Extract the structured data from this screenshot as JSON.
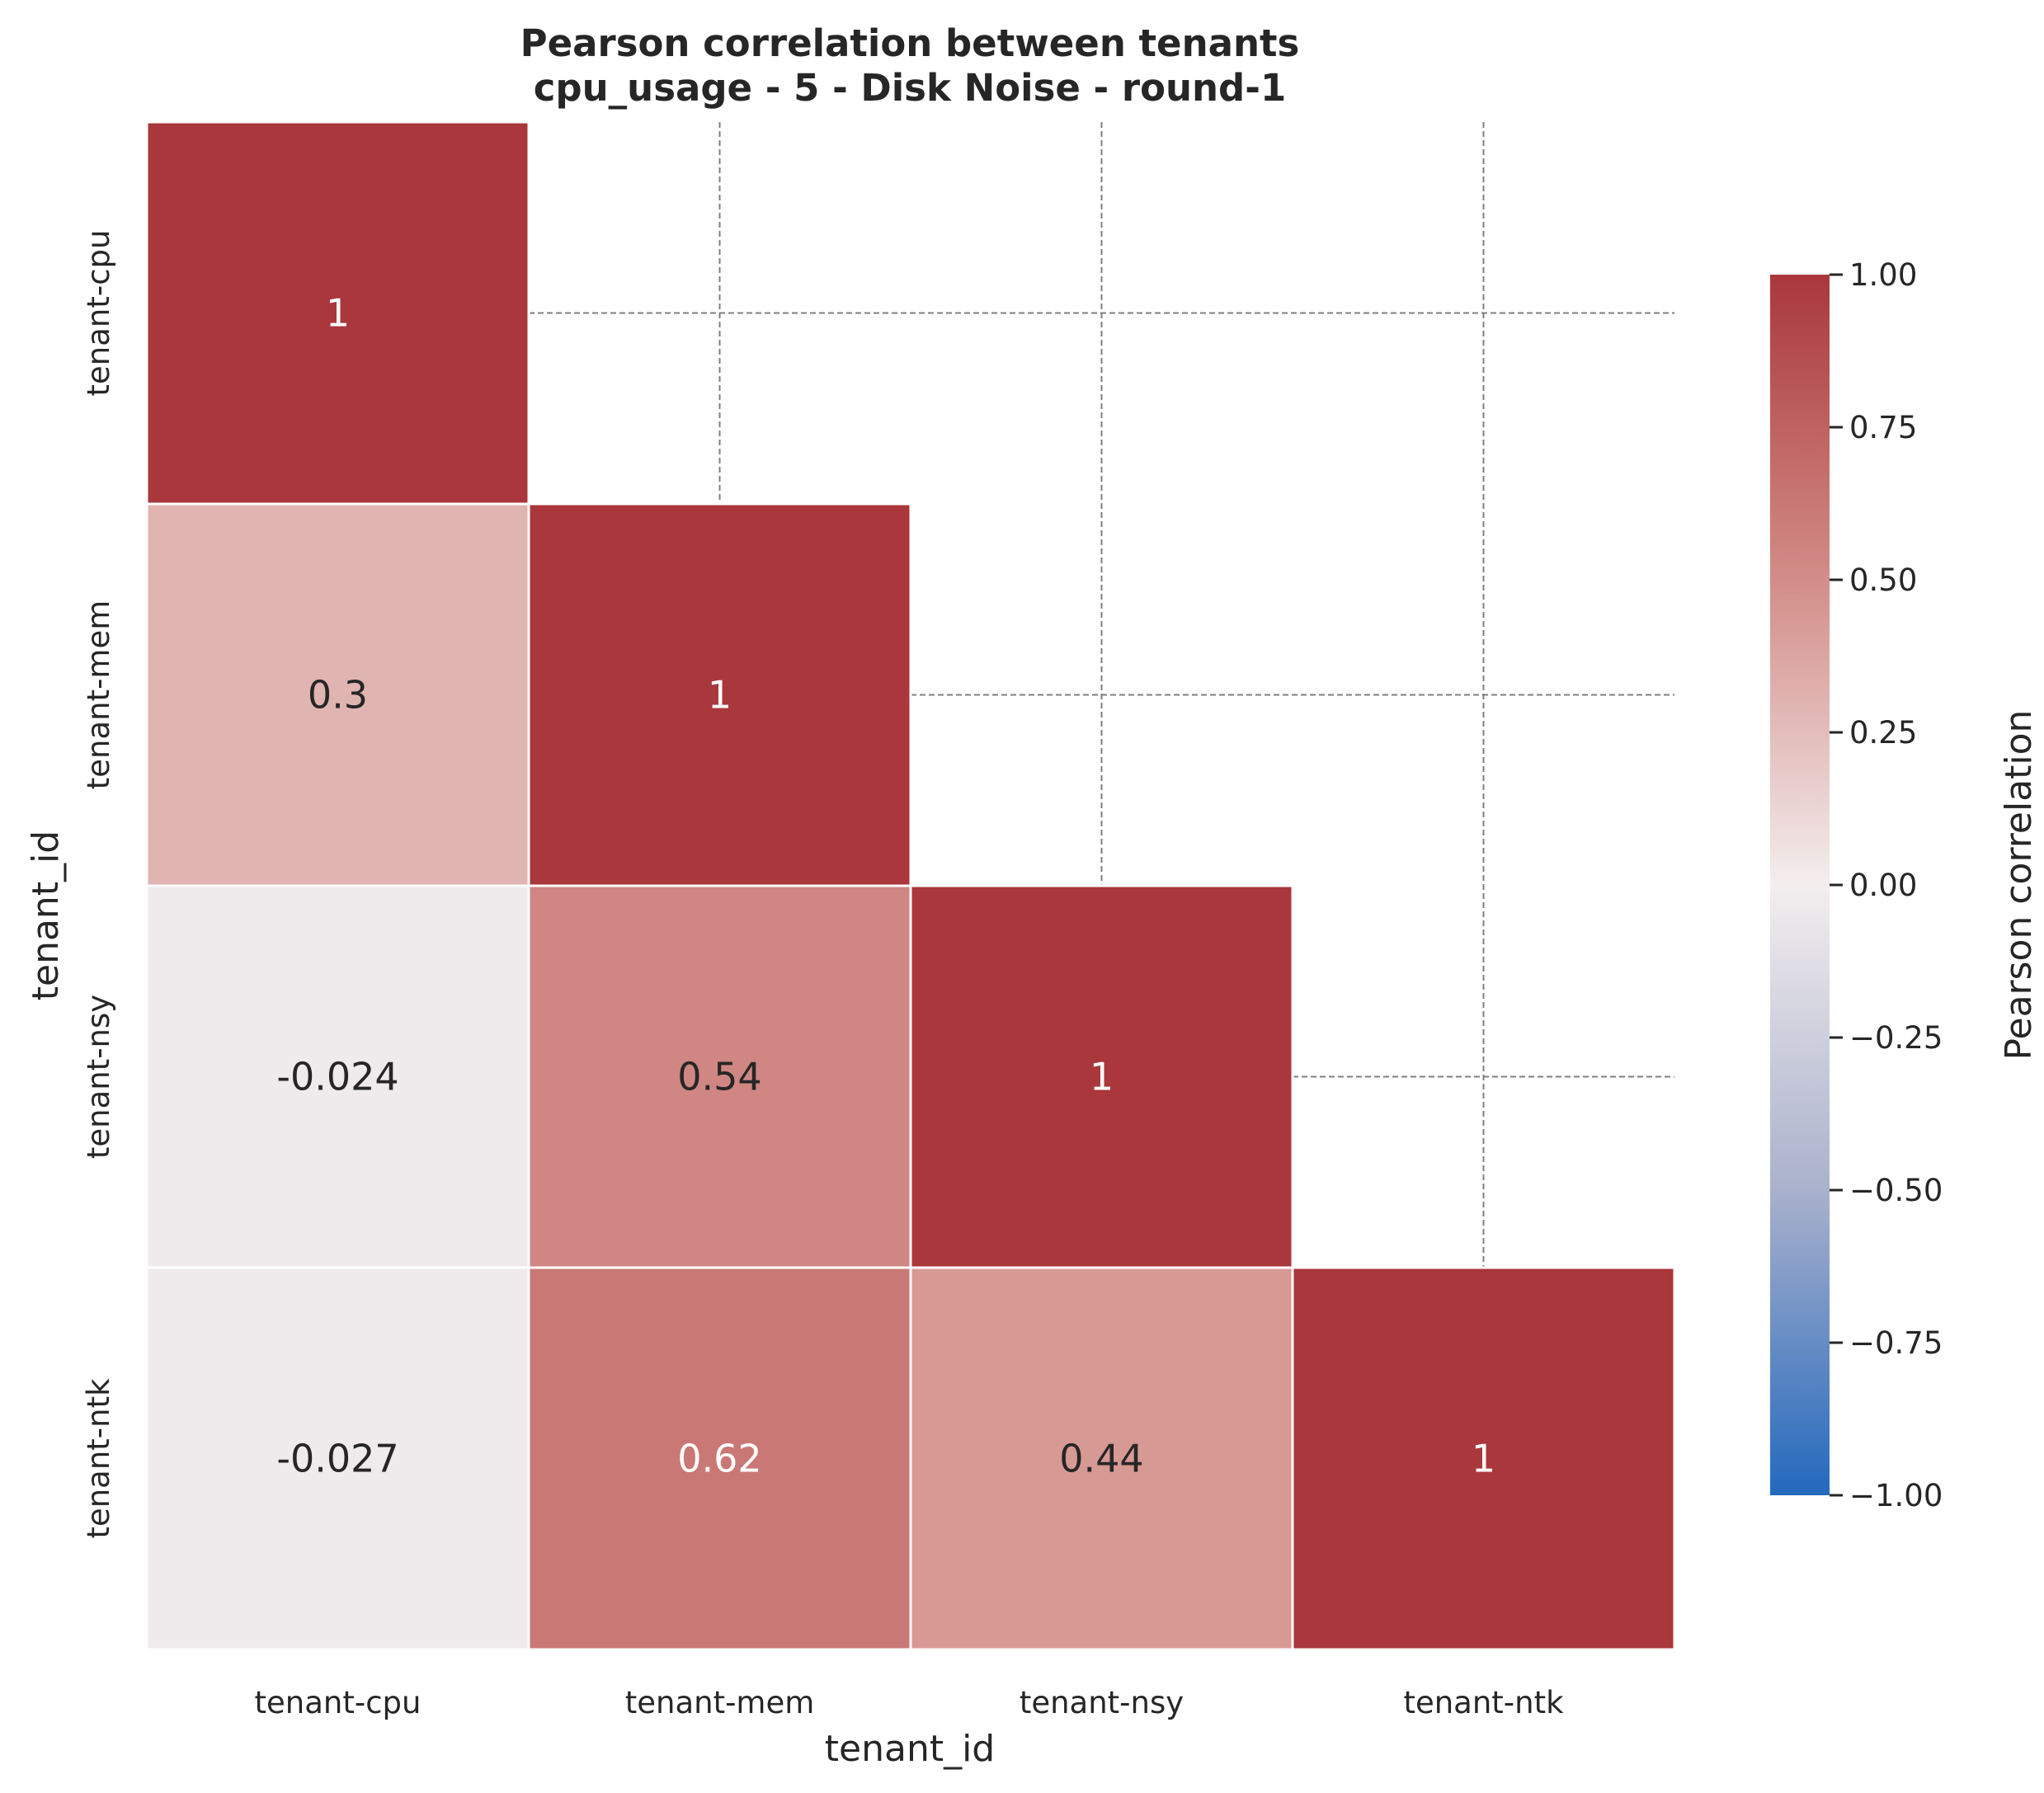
{
  "chart_data": {
    "type": "heatmap",
    "title": "Pearson correlation between tenants",
    "subtitle": "cpu_usage - 5 - Disk Noise - round-1",
    "xlabel": "tenant_id",
    "ylabel": "tenant_id",
    "x_categories": [
      "tenant-cpu",
      "tenant-mem",
      "tenant-nsy",
      "tenant-ntk"
    ],
    "y_categories": [
      "tenant-cpu",
      "tenant-mem",
      "tenant-nsy",
      "tenant-ntk"
    ],
    "mask": "upper-triangle",
    "cells": [
      {
        "row": 0,
        "col": 0,
        "value": 1,
        "label": "1"
      },
      {
        "row": 1,
        "col": 0,
        "value": 0.3,
        "label": "0.3"
      },
      {
        "row": 1,
        "col": 1,
        "value": 1,
        "label": "1"
      },
      {
        "row": 2,
        "col": 0,
        "value": -0.024,
        "label": "-0.024"
      },
      {
        "row": 2,
        "col": 1,
        "value": 0.54,
        "label": "0.54"
      },
      {
        "row": 2,
        "col": 2,
        "value": 1,
        "label": "1"
      },
      {
        "row": 3,
        "col": 0,
        "value": -0.027,
        "label": "-0.027"
      },
      {
        "row": 3,
        "col": 1,
        "value": 0.62,
        "label": "0.62"
      },
      {
        "row": 3,
        "col": 2,
        "value": 0.44,
        "label": "0.44"
      },
      {
        "row": 3,
        "col": 3,
        "value": 1,
        "label": "1"
      }
    ],
    "colorbar": {
      "label": "Pearson correlation",
      "range": [
        -1.0,
        1.0
      ],
      "ticks": [
        "1.00",
        "0.75",
        "0.50",
        "0.25",
        "0.00",
        "−0.25",
        "−0.50",
        "−0.75",
        "−1.00"
      ],
      "tick_values": [
        1.0,
        0.75,
        0.5,
        0.25,
        0.0,
        -0.25,
        -0.5,
        -0.75,
        -1.0
      ],
      "colormap": "vlag",
      "color_stops": [
        "#2369bd",
        "#a9b1cc",
        "#f3eeee",
        "#d38d88",
        "#a9373b"
      ]
    },
    "grid": true
  }
}
